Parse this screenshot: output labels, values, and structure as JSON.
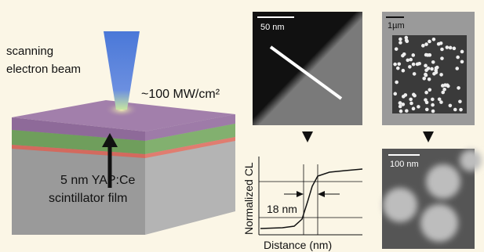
{
  "beam": {
    "label_line1": "scanning",
    "label_line2": "electron beam",
    "power": "~100 MW/cm²"
  },
  "film": {
    "label_line1": "5 nm YAP:Ce",
    "label_line2": "scintillator film"
  },
  "images": {
    "line_scan_scale": "50 nm",
    "particles_scale": "1µm",
    "zoom_scale": "100 nm"
  },
  "profile": {
    "resolution": "18 nm",
    "y_label": "Normalized CL",
    "x_label": "Distance (nm)"
  }
}
